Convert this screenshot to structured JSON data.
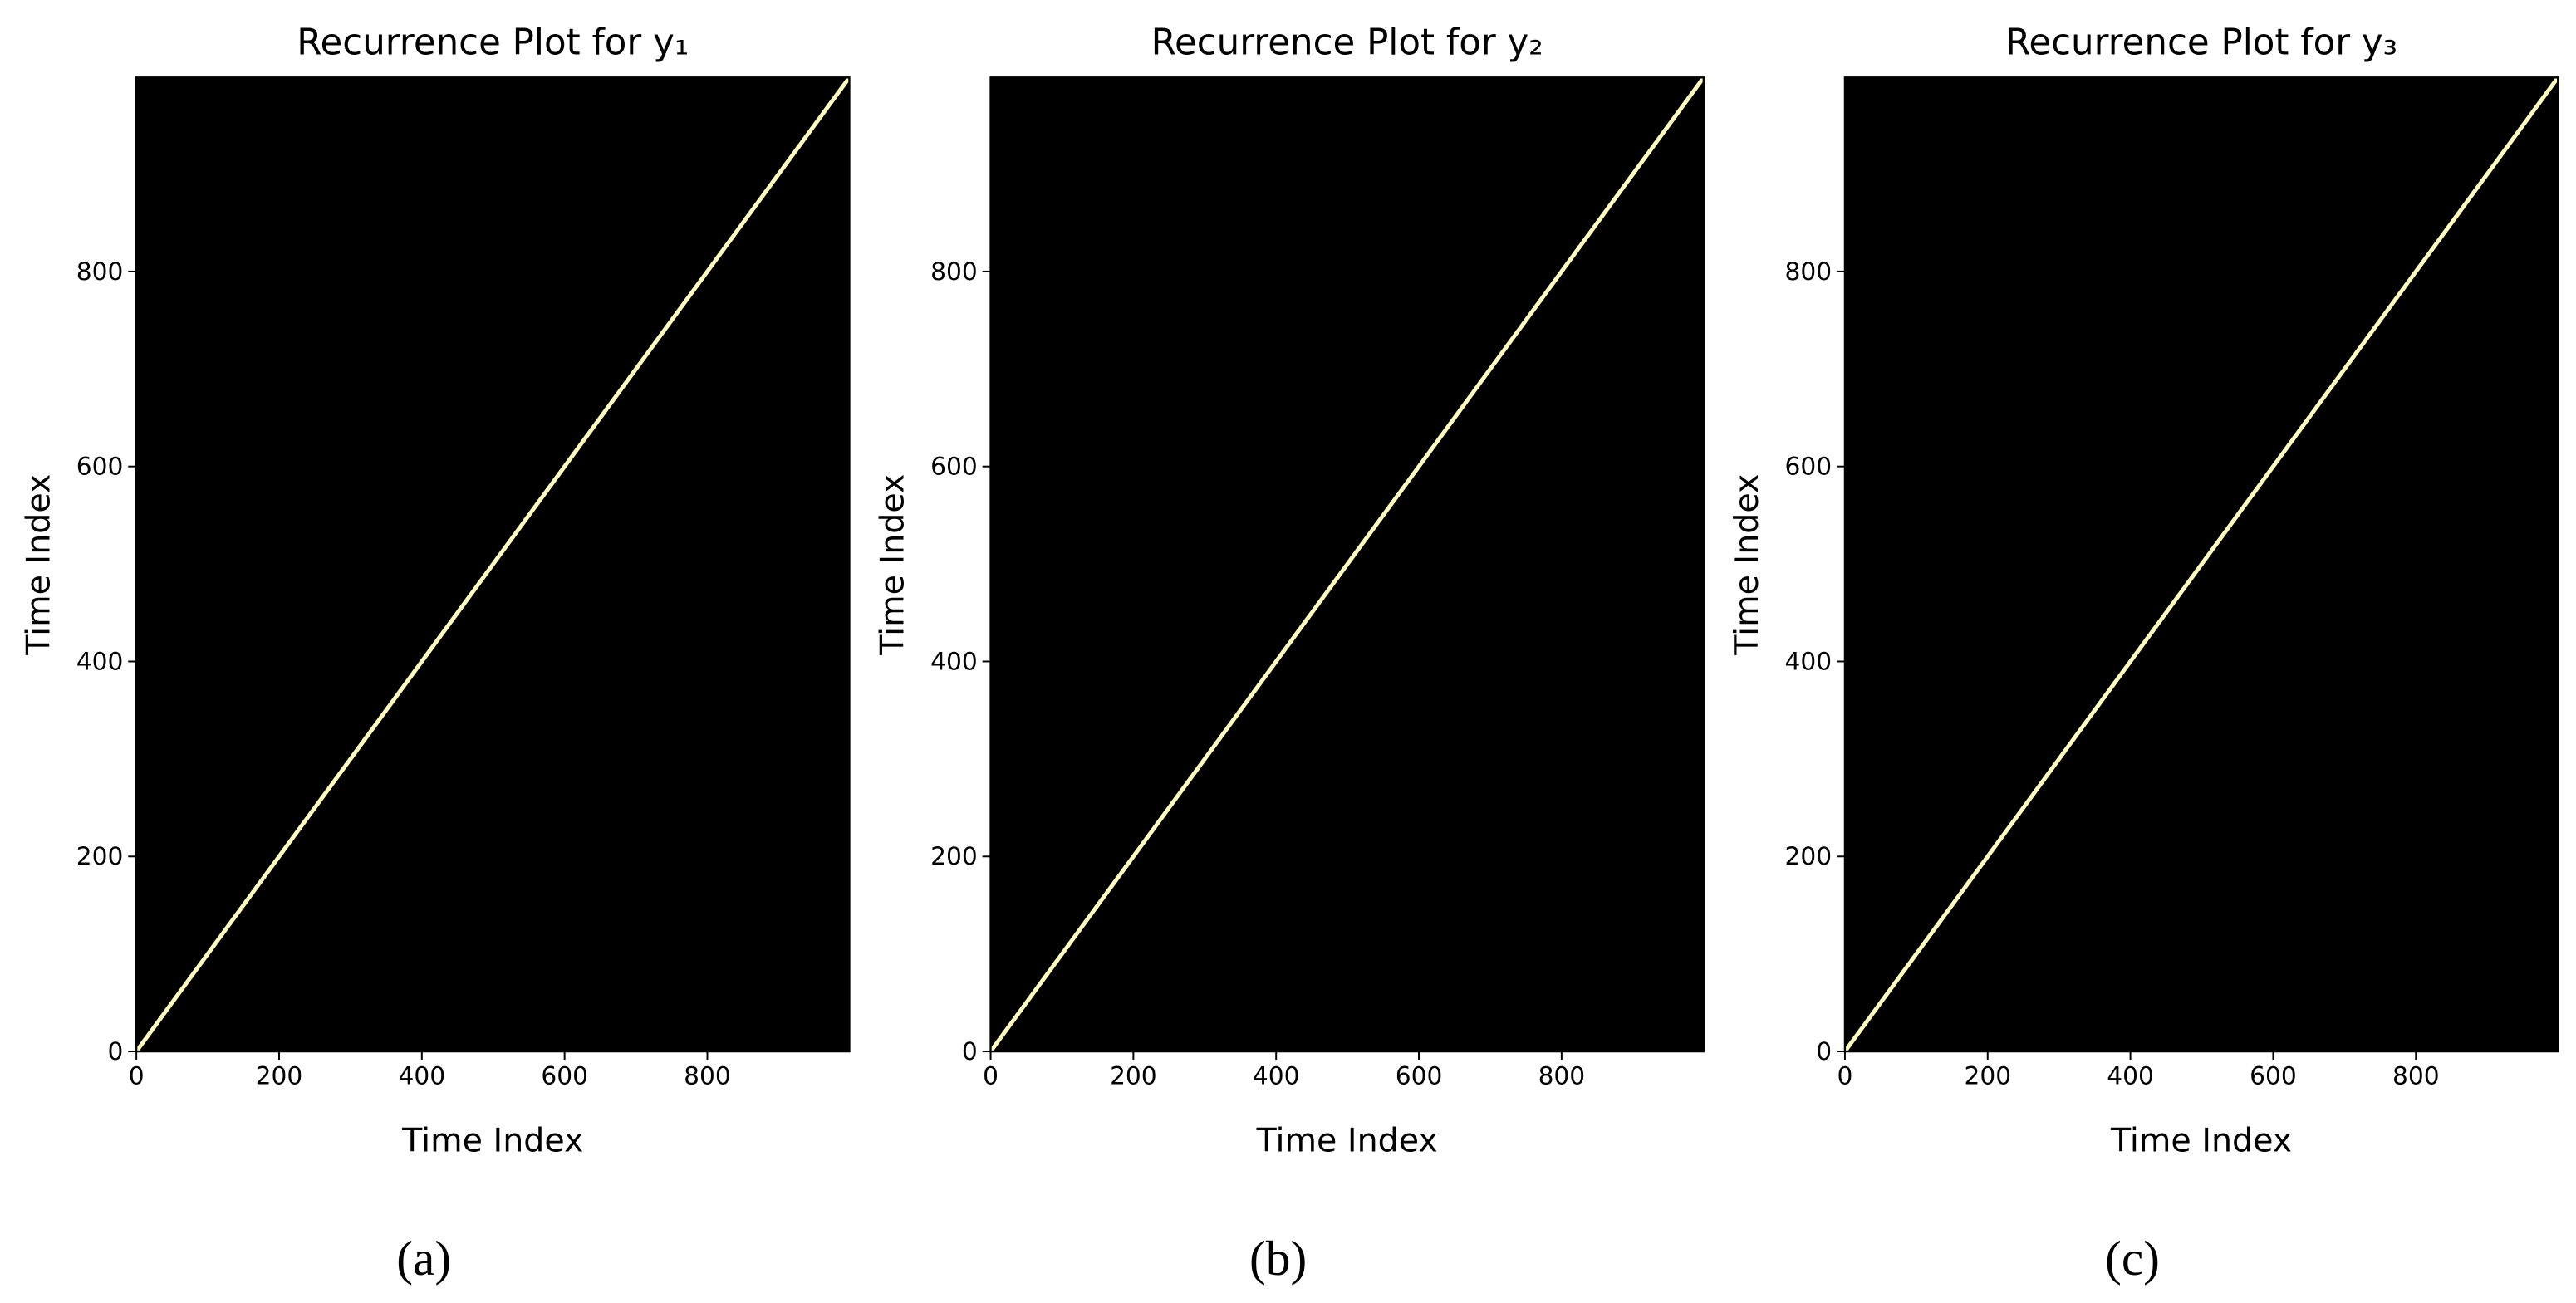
{
  "chart_data": [
    {
      "type": "recurrence",
      "title": "Recurrence Plot for y₁",
      "subfigure_label": "(a)",
      "x_label": "Time Index",
      "y_label": "Time Index",
      "xlim": [
        0,
        999
      ],
      "ylim": [
        0,
        999
      ],
      "xticks": [
        0,
        200,
        400,
        600,
        800
      ],
      "yticks": [
        0,
        200,
        400,
        600,
        800
      ],
      "background_color": "#000000",
      "recurrence_color": "#fffbc0"
    },
    {
      "type": "recurrence",
      "title": "Recurrence Plot for y₂",
      "subfigure_label": "(b)",
      "x_label": "Time Index",
      "y_label": "Time Index",
      "xlim": [
        0,
        999
      ],
      "ylim": [
        0,
        999
      ],
      "xticks": [
        0,
        200,
        400,
        600,
        800
      ],
      "yticks": [
        0,
        200,
        400,
        600,
        800
      ],
      "background_color": "#000000",
      "recurrence_color": "#fffbc0"
    },
    {
      "type": "recurrence",
      "title": "Recurrence Plot for y₃",
      "subfigure_label": "(c)",
      "x_label": "Time Index",
      "y_label": "Time Index",
      "xlim": [
        0,
        999
      ],
      "ylim": [
        0,
        999
      ],
      "xticks": [
        0,
        200,
        400,
        600,
        800
      ],
      "yticks": [
        0,
        200,
        400,
        600,
        800
      ],
      "background_color": "#000000",
      "recurrence_color": "#fffbc0"
    }
  ]
}
